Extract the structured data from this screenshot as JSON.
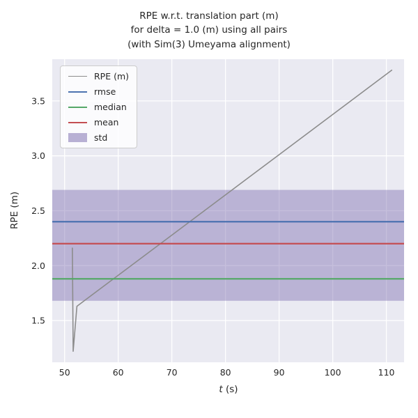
{
  "figure": {
    "background": "#ffffff"
  },
  "chart_data": {
    "type": "line",
    "title": "RPE w.r.t. translation part (m)\nfor delta = 1.0 (m) using all pairs\n(with Sim(3) Umeyama alignment)",
    "xlabel_italic": "t",
    "xlabel_rest": " (s)",
    "ylabel": "RPE (m)",
    "xlim": [
      47.7,
      113.3
    ],
    "ylim": [
      1.12,
      3.88
    ],
    "xticks": [
      "50",
      "60",
      "70",
      "80",
      "90",
      "100",
      "110"
    ],
    "yticks": [
      "1.5",
      "2.0",
      "2.5",
      "3.0",
      "3.5"
    ],
    "grid": true,
    "legend_position": "upper left",
    "colors": {
      "plot_bg": "#eaeaf2",
      "grid": "#ffffff",
      "text": "#262626",
      "legend_bg": "rgba(255,255,255,0.8)",
      "legend_border": "#cccccc"
    },
    "series": [
      {
        "name": "RPE (m)",
        "kind": "line",
        "color": "#8c8c8c",
        "width": 1.6,
        "points": [
          [
            51.45,
            2.16
          ],
          [
            51.6,
            1.22
          ],
          [
            52.3,
            1.63
          ],
          [
            111.0,
            3.78
          ]
        ]
      },
      {
        "name": "rmse",
        "kind": "hline",
        "color": "#4c72b0",
        "width": 2.2,
        "value": 2.4
      },
      {
        "name": "median",
        "kind": "hline",
        "color": "#55a868",
        "width": 2.2,
        "value": 1.88
      },
      {
        "name": "mean",
        "kind": "hline",
        "color": "#c44e52",
        "width": 2.2,
        "value": 2.2
      },
      {
        "name": "std",
        "kind": "band",
        "color": "#8172b2",
        "opacity": 0.45,
        "range": [
          1.68,
          2.69
        ]
      }
    ]
  }
}
